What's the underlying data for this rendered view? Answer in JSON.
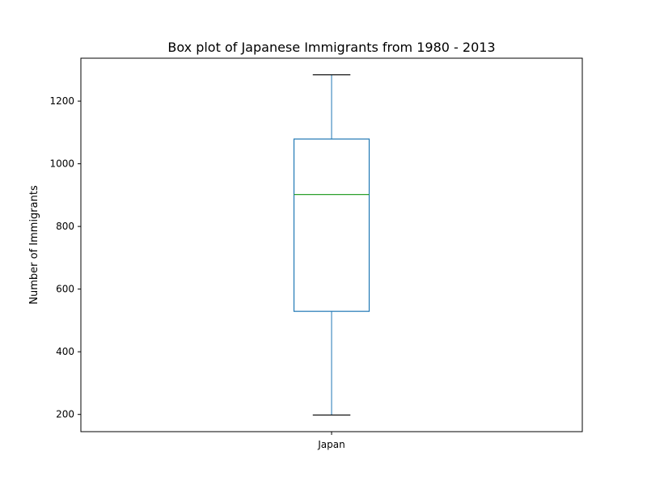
{
  "chart_data": {
    "type": "box",
    "title": "Box plot of Japanese Immigrants from 1980 - 2013",
    "xlabel": "",
    "ylabel": "Number of Immigrants",
    "categories": [
      "Japan"
    ],
    "ylim": [
      145,
      1337
    ],
    "yticks": [
      200,
      400,
      600,
      800,
      1000,
      1200
    ],
    "grid": false,
    "series": [
      {
        "name": "Japan",
        "min": 198,
        "q1": 529,
        "median": 902,
        "q3": 1079,
        "max": 1284
      }
    ],
    "colors": {
      "box": "#1f77b4",
      "median": "#2ca02c",
      "caps": "#000000",
      "axes": "#000000"
    }
  }
}
